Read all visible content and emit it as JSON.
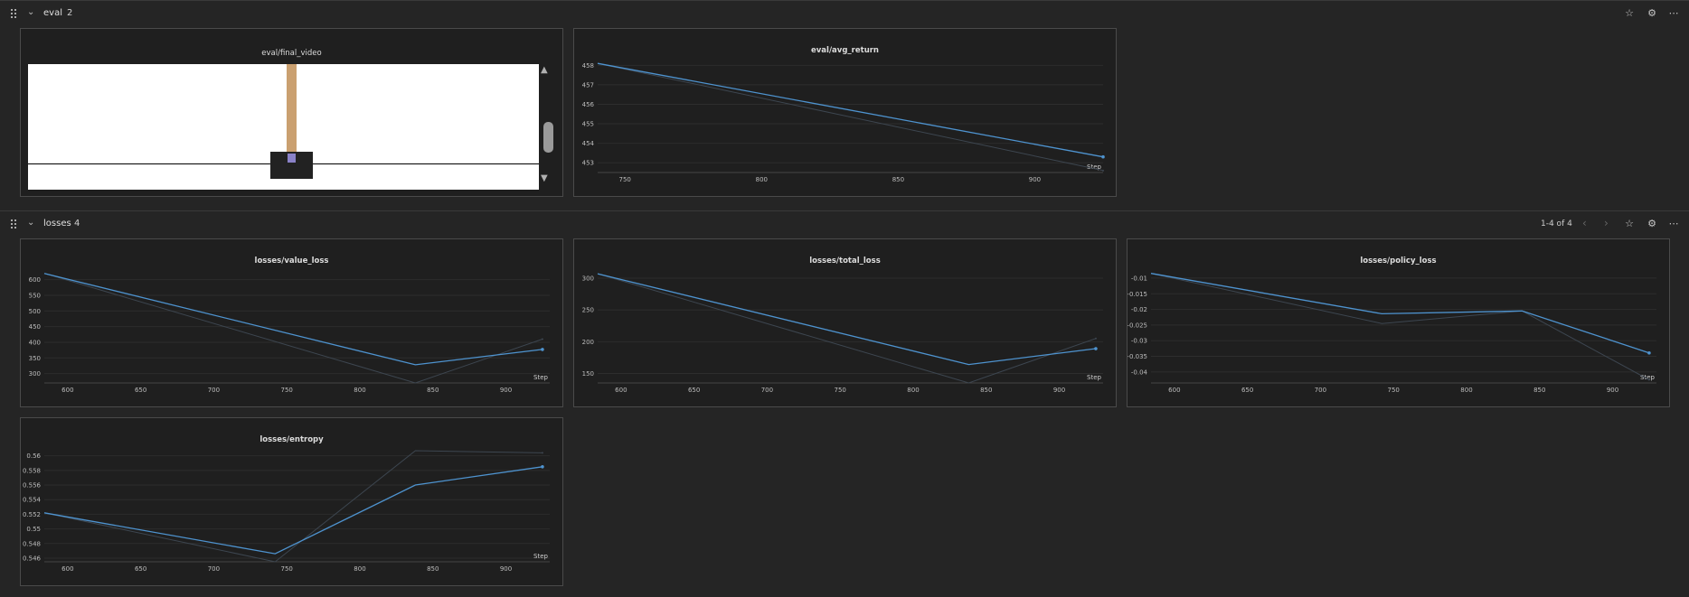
{
  "colors": {
    "background": "#252525",
    "panel": "#1f1f1f",
    "line": "#4e93cf",
    "raw_line": "#3d4650",
    "grid": "#2d2d2d"
  },
  "sections": [
    {
      "title": "eval",
      "count": "2",
      "icons": [
        "pin-icon",
        "gear-icon",
        "more-icon"
      ],
      "panels": [
        {
          "type": "video",
          "title": "eval/final_video"
        },
        {
          "type": "chart",
          "title": "eval/avg_return",
          "x_label": "Step"
        }
      ]
    },
    {
      "title": "losses",
      "count": "4",
      "pager": "1-4 of 4",
      "icons": [
        "chevron-left-icon",
        "chevron-right-icon",
        "pin-icon",
        "gear-icon",
        "more-icon"
      ],
      "panels": [
        {
          "type": "chart",
          "title": "losses/value_loss",
          "x_label": "Step"
        },
        {
          "type": "chart",
          "title": "losses/total_loss",
          "x_label": "Step"
        },
        {
          "type": "chart",
          "title": "losses/policy_loss",
          "x_label": "Step"
        },
        {
          "type": "chart",
          "title": "losses/entropy",
          "x_label": "Step"
        }
      ]
    }
  ],
  "chart_data": [
    {
      "id": "eval/avg_return",
      "type": "line",
      "title": "eval/avg_return",
      "xlabel": "Step",
      "xlim": [
        740,
        925
      ],
      "ylim": [
        452.5,
        458.2
      ],
      "xticks": [
        750,
        800,
        850,
        900
      ],
      "yticks": [
        453,
        454,
        455,
        456,
        457,
        458
      ],
      "series": [
        {
          "style": "raw",
          "x": [
            740,
            925
          ],
          "y": [
            458.1,
            452.6
          ]
        },
        {
          "style": "smoothed",
          "x": [
            740,
            925
          ],
          "y": [
            458.1,
            453.3
          ]
        }
      ]
    },
    {
      "id": "losses/value_loss",
      "type": "line",
      "title": "losses/value_loss",
      "xlabel": "Step",
      "xlim": [
        584,
        930
      ],
      "ylim": [
        270,
        625
      ],
      "xticks": [
        600,
        650,
        700,
        750,
        800,
        850,
        900
      ],
      "yticks": [
        300,
        350,
        400,
        450,
        500,
        550,
        600
      ],
      "series": [
        {
          "style": "raw",
          "x": [
            584,
            838,
            925
          ],
          "y": [
            620,
            270,
            410
          ]
        },
        {
          "style": "smoothed",
          "x": [
            584,
            838,
            925
          ],
          "y": [
            620,
            328,
            377
          ]
        }
      ]
    },
    {
      "id": "losses/total_loss",
      "type": "line",
      "title": "losses/total_loss",
      "xlabel": "Step",
      "xlim": [
        584,
        930
      ],
      "ylim": [
        135,
        310
      ],
      "xticks": [
        600,
        650,
        700,
        750,
        800,
        850,
        900
      ],
      "yticks": [
        150,
        200,
        250,
        300
      ],
      "series": [
        {
          "style": "raw",
          "x": [
            584,
            838,
            925
          ],
          "y": [
            307,
            135,
            205
          ]
        },
        {
          "style": "smoothed",
          "x": [
            584,
            838,
            925
          ],
          "y": [
            307,
            164,
            189
          ]
        }
      ]
    },
    {
      "id": "losses/policy_loss",
      "type": "line",
      "title": "losses/policy_loss",
      "xlabel": "Step",
      "xlim": [
        584,
        930
      ],
      "ylim": [
        -0.0435,
        -0.008
      ],
      "xticks": [
        600,
        650,
        700,
        750,
        800,
        850,
        900
      ],
      "yticks": [
        -0.01,
        -0.015,
        -0.02,
        -0.025,
        -0.03,
        -0.035,
        -0.04
      ],
      "series": [
        {
          "style": "raw",
          "x": [
            584,
            742,
            838,
            925
          ],
          "y": [
            -0.0085,
            -0.0245,
            -0.0205,
            -0.0425
          ]
        },
        {
          "style": "smoothed",
          "x": [
            584,
            742,
            838,
            925
          ],
          "y": [
            -0.0085,
            -0.0214,
            -0.0205,
            -0.0339
          ]
        }
      ]
    },
    {
      "id": "losses/entropy",
      "type": "line",
      "title": "losses/entropy",
      "xlabel": "Step",
      "xlim": [
        584,
        930
      ],
      "ylim": [
        0.5455,
        0.5607
      ],
      "xticks": [
        600,
        650,
        700,
        750,
        800,
        850,
        900
      ],
      "yticks": [
        0.546,
        0.548,
        0.55,
        0.552,
        0.554,
        0.556,
        0.558,
        0.56
      ],
      "ytick_labels": [
        "0.546",
        "0.548",
        "0.55",
        "0.552",
        "0.554",
        "0.556",
        "0.558",
        "0.56"
      ],
      "series": [
        {
          "style": "raw",
          "x": [
            584,
            742,
            838,
            925
          ],
          "y": [
            0.5522,
            0.5455,
            0.5607,
            0.5604
          ]
        },
        {
          "style": "smoothed",
          "x": [
            584,
            742,
            838,
            925
          ],
          "y": [
            0.5522,
            0.5466,
            0.556,
            0.5585
          ]
        }
      ]
    }
  ]
}
